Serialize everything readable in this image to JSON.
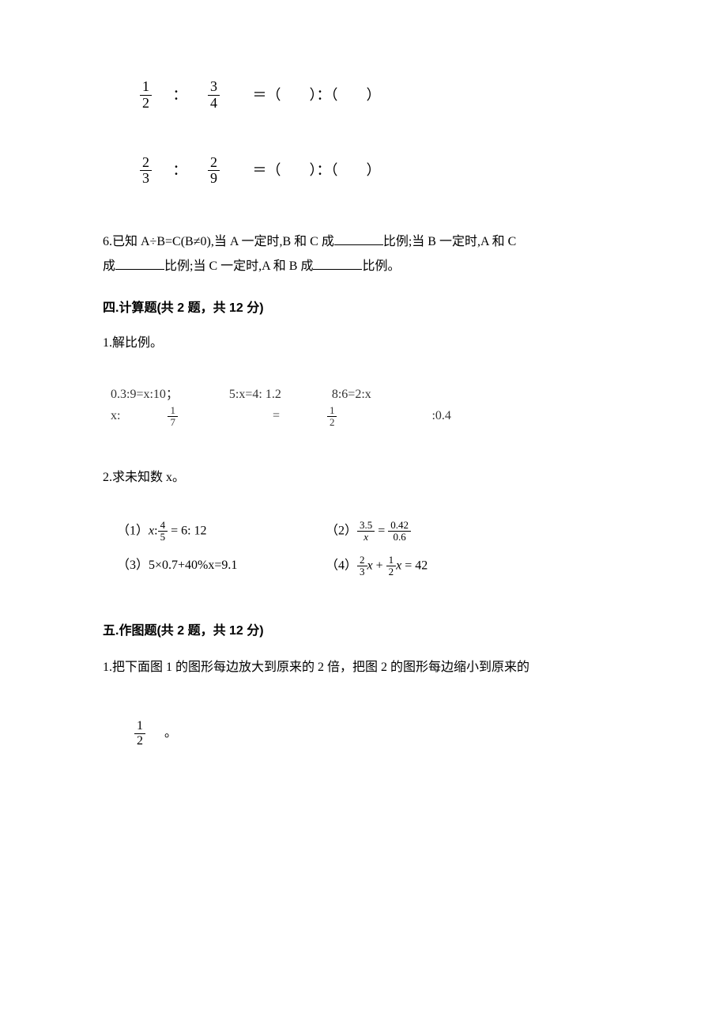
{
  "ratio1": {
    "frac_a_num": "1",
    "frac_a_den": "2",
    "frac_b_num": "3",
    "frac_b_den": "4",
    "colon": "：",
    "rhs": "＝（　　）：（　　）"
  },
  "ratio2": {
    "frac_a_num": "2",
    "frac_a_den": "3",
    "frac_b_num": "2",
    "frac_b_den": "9",
    "colon": "：",
    "rhs": "＝（　　）：（　　）"
  },
  "q6": {
    "pre": "6.已知 A÷B=C(B≠0),当 A 一定时,B 和 C 成",
    "mid1": "比例;当 B 一定时,A 和 C",
    "mid2": "成",
    "mid3": "比例;当 C 一定时,A 和 B 成",
    "end": "比例。"
  },
  "section4": {
    "title": "四.计算题(共 2 题，共 12 分)",
    "q1_title": "1.解比例。",
    "calc1": "0.3:9=x:10；",
    "calc2": "5:x=4: 1.2",
    "calc3": "8:6=2:x",
    "calc4_pre": "x:",
    "calc4_f1_num": "1",
    "calc4_f1_den": "7",
    "calc4_mid": " = ",
    "calc4_f2_num": "1",
    "calc4_f2_den": "2",
    "calc4_end": ":0.4",
    "q2_title": "2.求未知数 x。",
    "eq1_pre": "（1）",
    "eq1_x": "x",
    "eq1_colon": ":",
    "eq1_f_num": "4",
    "eq1_f_den": "5",
    "eq1_end": " = 6: 12",
    "eq2_pre": "（2）",
    "eq2_f1_num": "3.5",
    "eq2_f1_den": "x",
    "eq2_mid": " = ",
    "eq2_f2_num": "0.42",
    "eq2_f2_den": "0.6",
    "eq3": "（3）5×0.7+40%x=9.1",
    "eq4_pre": "（4）",
    "eq4_f1_num": "2",
    "eq4_f1_den": "3",
    "eq4_x1": "x",
    "eq4_plus": " + ",
    "eq4_f2_num": "1",
    "eq4_f2_den": "2",
    "eq4_x2": "x",
    "eq4_end": " = 42"
  },
  "section5": {
    "title": "五.作图题(共 2 题，共 12 分)",
    "content": "1.把下面图 1 的图形每边放大到原来的 2 倍，把图 2 的图形每边缩小到原来的",
    "frac_num": "1",
    "frac_den": "2",
    "end": "。"
  }
}
